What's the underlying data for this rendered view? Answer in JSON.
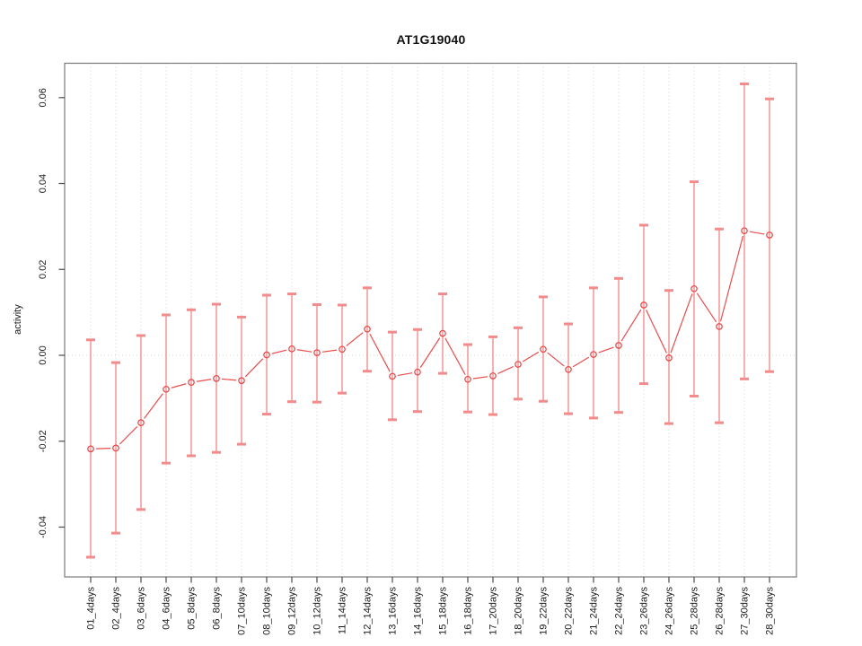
{
  "chart_data": {
    "type": "line",
    "title": "AT1G19040",
    "xlabel": "",
    "ylabel": "activity",
    "legend": null,
    "grid": "dotted vertical gridline at every category; dotted horizontal line at y=0",
    "ylim": [
      -0.0516,
      0.068
    ],
    "y_ticks": [
      -0.04,
      -0.02,
      0.0,
      0.02,
      0.04,
      0.06
    ],
    "marker": "open-circle",
    "error_bars": true,
    "colors": {
      "series_line": "#e84c4c",
      "marker_stroke": "#e84c4c",
      "error_bar": "#f49c9c",
      "error_bar_cap": "#f28b8b",
      "gridline": "#d4d4d4",
      "plot_border": "#7a7a7a",
      "tick": "#4a4a4a",
      "text": "#1a1a1a"
    },
    "categories": [
      "01_4days",
      "02_4days",
      "03_6days",
      "04_6days",
      "05_8days",
      "06_8days",
      "07_10days",
      "08_10days",
      "09_12days",
      "10_12days",
      "11_14days",
      "12_14days",
      "13_16days",
      "14_16days",
      "15_18days",
      "16_18days",
      "17_20days",
      "18_20days",
      "19_22days",
      "20_22days",
      "21_24days",
      "22_24days",
      "23_26days",
      "24_26days",
      "25_28days",
      "26_28days",
      "27_30days",
      "28_30days"
    ],
    "values": [
      -0.0218,
      -0.0216,
      -0.0157,
      -0.0079,
      -0.0063,
      -0.0054,
      -0.0059,
      0.0001,
      0.0015,
      0.0006,
      0.0014,
      0.0061,
      -0.0049,
      -0.0039,
      0.0051,
      -0.0056,
      -0.0048,
      -0.0021,
      0.0014,
      -0.0033,
      0.0002,
      0.0023,
      0.0117,
      -0.0006,
      0.0155,
      0.0067,
      0.029,
      0.028
    ],
    "ci_upper": [
      0.0036,
      -0.0017,
      0.0046,
      0.0094,
      0.0106,
      0.0119,
      0.0089,
      0.014,
      0.0143,
      0.0118,
      0.0117,
      0.0157,
      0.0054,
      0.006,
      0.0143,
      0.0025,
      0.0043,
      0.0064,
      0.0136,
      0.0073,
      0.0157,
      0.0179,
      0.0303,
      0.0151,
      0.0404,
      0.0294,
      0.0632,
      0.0597
    ],
    "ci_lower": [
      -0.047,
      -0.0414,
      -0.0359,
      -0.0251,
      -0.0234,
      -0.0226,
      -0.0207,
      -0.0137,
      -0.0108,
      -0.0109,
      -0.0088,
      -0.0037,
      -0.015,
      -0.0131,
      -0.0042,
      -0.0132,
      -0.0138,
      -0.0102,
      -0.0107,
      -0.0136,
      -0.0146,
      -0.0133,
      -0.0066,
      -0.0159,
      -0.0095,
      -0.0157,
      -0.0055,
      -0.0038
    ]
  }
}
